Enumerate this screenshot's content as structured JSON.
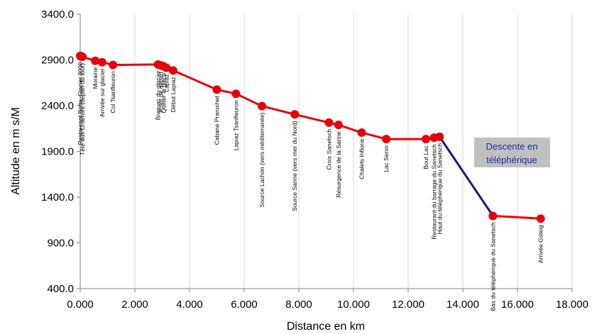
{
  "chart_data": {
    "type": "line",
    "title": "",
    "xlabel": "Distance en km",
    "ylabel": "Altitude en m s/M",
    "xlim": [
      0,
      18
    ],
    "ylim": [
      400,
      3400
    ],
    "x_ticks": [
      "0.000",
      "2.000",
      "4.000",
      "6.000",
      "8.000",
      "10.000",
      "12.000",
      "14.000",
      "16.000",
      "18.000"
    ],
    "x_tick_values": [
      0,
      2,
      4,
      6,
      8,
      10,
      12,
      14,
      16,
      18
    ],
    "y_ticks": [
      "400.0",
      "900.0",
      "1400.0",
      "1900.0",
      "2400.0",
      "2900.0",
      "3400.0"
    ],
    "y_tick_values": [
      400,
      900,
      1400,
      1900,
      2400,
      2900,
      3400
    ],
    "grid": "vertical",
    "colors": {
      "walk": "#e8000b",
      "cable_car": "#1a1a7a",
      "grid": "#d8d8d8"
    },
    "series": [
      {
        "segment": "walk",
        "points": [
          {
            "x": 0.0,
            "y": 2945,
            "label": "Restaurant Botta, Glacier 3000"
          },
          {
            "x": 0.08,
            "y": 2935,
            "label": "Tête aux Chamois (départ du tour)"
          },
          {
            "x": 0.55,
            "y": 2890,
            "label": "Moraine"
          },
          {
            "x": 0.8,
            "y": 2875,
            "label": "Arrivée sur glacier"
          },
          {
            "x": 1.2,
            "y": 2845,
            "label": "Col Tsanfleuron"
          },
          {
            "x": 2.85,
            "y": 2850,
            "label": "Bivouac du glacier"
          },
          {
            "x": 2.95,
            "y": 2840,
            "label": "Point de départ"
          },
          {
            "x": 3.05,
            "y": 2830,
            "label": "Quitter la glace"
          },
          {
            "x": 3.15,
            "y": 2815,
            "label": "Lapiaz"
          },
          {
            "x": 3.4,
            "y": 2785,
            "label": "Début Lapiaz"
          },
          {
            "x": 5.0,
            "y": 2575,
            "label": "Cabane Prarochet"
          },
          {
            "x": 5.7,
            "y": 2530,
            "label": "Lapiaz Tsanfleuron"
          },
          {
            "x": 6.65,
            "y": 2395,
            "label": "Source Lachon (vers méditerranée)"
          },
          {
            "x": 7.85,
            "y": 2305,
            "label": "Source Sarine (vers mer du Nord)"
          },
          {
            "x": 9.1,
            "y": 2215,
            "label": "Croix Sanetsch"
          },
          {
            "x": 9.45,
            "y": 2190,
            "label": "Résurgence de la Sarine"
          },
          {
            "x": 10.3,
            "y": 2105,
            "label": "Chalets Infloria"
          },
          {
            "x": 11.2,
            "y": 2035,
            "label": "Lac Senin"
          },
          {
            "x": 12.65,
            "y": 2035,
            "label": "Bout Lac"
          },
          {
            "x": 12.95,
            "y": 2050,
            "label": "Restaurant du barrage du Sanetsch"
          },
          {
            "x": 13.15,
            "y": 2060,
            "label": "Haut du téléphérique du Sanetsch"
          }
        ]
      },
      {
        "segment": "cable_car",
        "points": [
          {
            "x": 13.15,
            "y": 2060
          },
          {
            "x": 15.1,
            "y": 1195
          }
        ]
      },
      {
        "segment": "walk",
        "points": [
          {
            "x": 15.1,
            "y": 1195,
            "label": "Bas du téléphérique du Sanetsch"
          },
          {
            "x": 16.85,
            "y": 1165,
            "label": "Arrivée Gsteig"
          }
        ]
      }
    ],
    "annotation": {
      "text_line1": "Descente en",
      "text_line2": "téléphérique",
      "x": 16.25,
      "y": 1970
    }
  }
}
